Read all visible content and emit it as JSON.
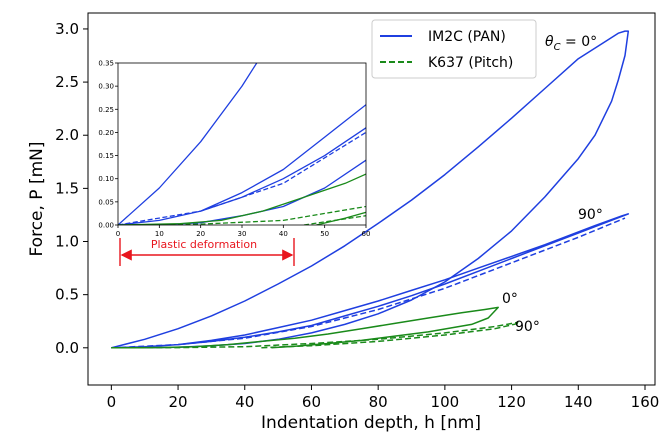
{
  "chart_data": {
    "type": "line",
    "xlabel": "Indentation depth, h [nm]",
    "ylabel": "Force, P [mN]",
    "xlim": [
      -7,
      163
    ],
    "ylim": [
      -0.35,
      3.15
    ],
    "xticks": [
      "0",
      "20",
      "40",
      "60",
      "80",
      "100",
      "120",
      "140",
      "160"
    ],
    "yticks": [
      "0.0",
      "0.5",
      "1.0",
      "1.5",
      "2.0",
      "2.5",
      "3.0"
    ],
    "legend": {
      "placement": "top-right",
      "entries": [
        {
          "label": "IM2C (PAN)",
          "color": "#1f3fe0",
          "style": "solid"
        },
        {
          "label": "K637 (Pitch)",
          "color": "#1a8a1a",
          "style": "dashed"
        }
      ]
    },
    "annotations": [
      {
        "text": "θ",
        "sub": "C",
        "tail": " = 0°",
        "x": 140,
        "y": 2.9
      },
      {
        "text": "90°",
        "x": 143,
        "y": 1.25
      },
      {
        "text": "0°",
        "x": 111,
        "y": 0.35
      },
      {
        "text": "90°",
        "x": 123,
        "y": 0.1
      }
    ],
    "series": [
      {
        "name": "IM2C (PAN)",
        "angle": "0°",
        "color": "#1f3fe0",
        "style": "solid",
        "x": [
          0,
          10,
          20,
          30,
          40,
          50,
          60,
          70,
          80,
          90,
          100,
          110,
          120,
          130,
          140,
          148,
          152,
          154,
          155,
          154,
          152,
          150,
          145,
          140,
          130,
          120,
          110,
          100,
          90,
          80,
          70,
          60,
          50,
          40,
          30,
          20,
          10,
          0
        ],
        "y": [
          0,
          0.08,
          0.18,
          0.3,
          0.44,
          0.6,
          0.77,
          0.96,
          1.17,
          1.39,
          1.63,
          1.89,
          2.16,
          2.44,
          2.72,
          2.88,
          2.96,
          2.98,
          2.98,
          2.75,
          2.52,
          2.32,
          2.0,
          1.78,
          1.42,
          1.1,
          0.84,
          0.62,
          0.45,
          0.32,
          0.22,
          0.14,
          0.08,
          0.04,
          0.02,
          0.005,
          0,
          0
        ]
      },
      {
        "name": "IM2C (PAN)",
        "angle": "90°",
        "color": "#1f3fe0",
        "style": "solid",
        "x": [
          0,
          10,
          20,
          30,
          40,
          50,
          60,
          70,
          80,
          90,
          100,
          110,
          120,
          130,
          140,
          150,
          155,
          153,
          145,
          140,
          130,
          120,
          110,
          100,
          90,
          80,
          70,
          60,
          50,
          40,
          30,
          20,
          10,
          0
        ],
        "y": [
          0,
          0.01,
          0.03,
          0.06,
          0.1,
          0.15,
          0.21,
          0.3,
          0.39,
          0.49,
          0.6,
          0.72,
          0.84,
          0.96,
          1.08,
          1.2,
          1.26,
          1.24,
          1.15,
          1.09,
          0.97,
          0.86,
          0.75,
          0.64,
          0.54,
          0.44,
          0.35,
          0.26,
          0.19,
          0.12,
          0.07,
          0.03,
          0.01,
          0
        ]
      },
      {
        "name": "IM2C (PAN)",
        "angle": "90°",
        "color": "#1f3fe0",
        "style": "dashed",
        "x": [
          0,
          20,
          40,
          60,
          80,
          100,
          120,
          140,
          154
        ],
        "y": [
          0,
          0.03,
          0.09,
          0.2,
          0.36,
          0.56,
          0.8,
          1.04,
          1.22
        ]
      },
      {
        "name": "K637 (Pitch)",
        "angle": "0°",
        "color": "#1a8a1a",
        "style": "solid",
        "x": [
          0,
          15,
          25,
          35,
          45,
          55,
          65,
          75,
          85,
          95,
          105,
          112,
          116,
          113,
          108,
          95,
          85,
          75,
          65,
          55,
          48
        ],
        "y": [
          0,
          0.003,
          0.01,
          0.03,
          0.06,
          0.09,
          0.13,
          0.18,
          0.23,
          0.28,
          0.33,
          0.36,
          0.38,
          0.28,
          0.22,
          0.15,
          0.11,
          0.07,
          0.04,
          0.015,
          0
        ]
      },
      {
        "name": "K637 (Pitch)",
        "angle": "90°",
        "color": "#1a8a1a",
        "style": "dashed",
        "x": [
          0,
          20,
          40,
          60,
          80,
          100,
          115,
          122
        ],
        "y": [
          0,
          0.002,
          0.01,
          0.04,
          0.08,
          0.14,
          0.2,
          0.24
        ]
      },
      {
        "name": "K637 (Pitch)",
        "angle": "90°",
        "color": "#1a8a1a",
        "style": "dashed",
        "x": [
          45,
          60,
          80,
          100,
          115,
          122
        ],
        "y": [
          0,
          0.02,
          0.06,
          0.12,
          0.18,
          0.23
        ]
      }
    ],
    "inset": {
      "xlim": [
        0,
        60
      ],
      "ylim": [
        0,
        0.35
      ],
      "xticks": [
        "0",
        "10",
        "20",
        "30",
        "40",
        "50",
        "60"
      ],
      "yticks": [
        "0.00",
        "0.05",
        "0.10",
        "0.15",
        "0.20",
        "0.25",
        "0.30",
        "0.35"
      ]
    },
    "plastic_deformation": {
      "label": "Plastic deformation",
      "x_start": 2,
      "x_end": 54
    }
  }
}
